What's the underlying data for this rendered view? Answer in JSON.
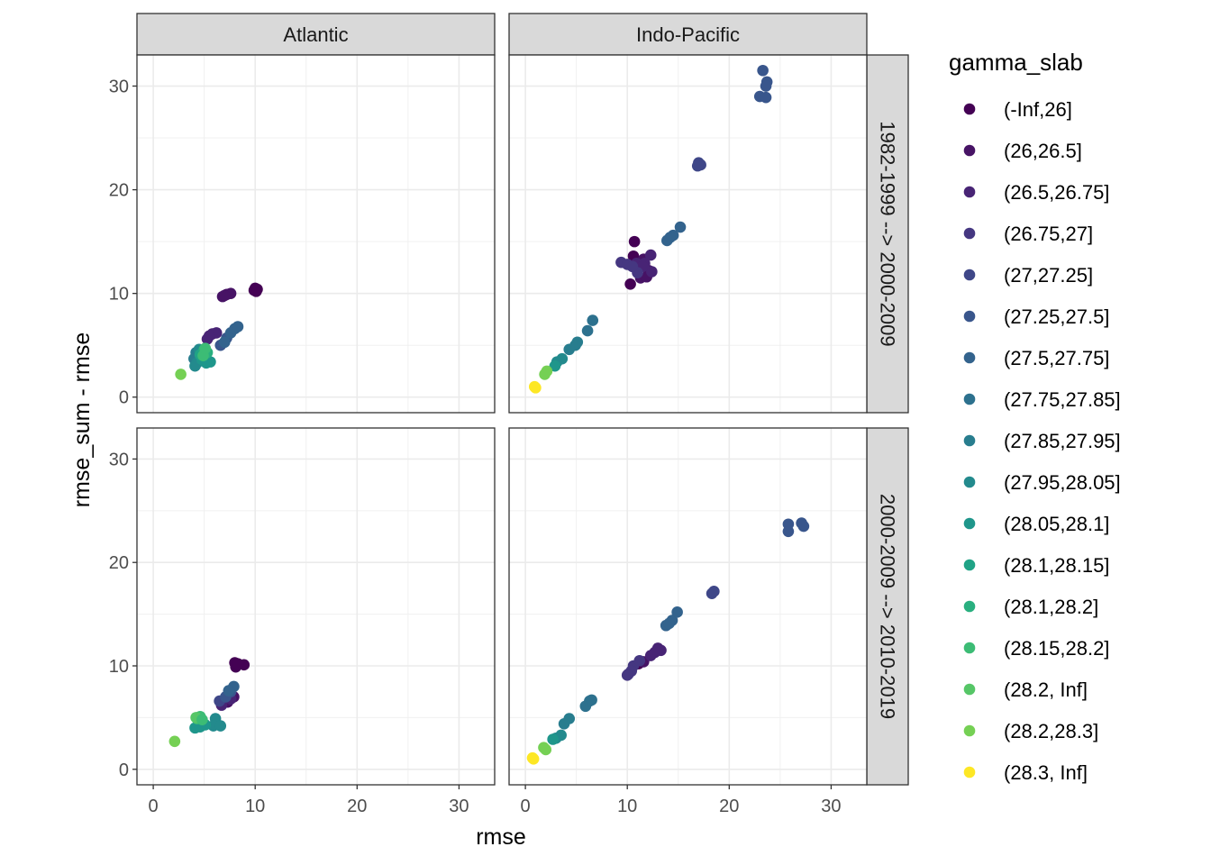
{
  "chart_data": {
    "type": "scatter",
    "title": "",
    "xlabel": "rmse",
    "ylabel": "rmse_sum - rmse",
    "xlim": [
      -1.6,
      33.5
    ],
    "ylim": [
      -1.5,
      33
    ],
    "xticks": [
      0,
      10,
      20,
      30
    ],
    "yticks": [
      0,
      10,
      20,
      30
    ],
    "grid": true,
    "facet_cols": [
      "Atlantic",
      "Indo-Pacific"
    ],
    "facet_rows": [
      "1982-1999 --> 2000-2009",
      "2000-2009 --> 2010-2019"
    ],
    "legend": {
      "title": "gamma_slab",
      "position": "right",
      "entries": [
        {
          "label": "(-Inf,26]",
          "color": "#440154"
        },
        {
          "label": "(26,26.5]",
          "color": "#471365"
        },
        {
          "label": "(26.5,26.75]",
          "color": "#482475"
        },
        {
          "label": "(26.75,27]",
          "color": "#453781"
        },
        {
          "label": "(27,27.25]",
          "color": "#3F4788"
        },
        {
          "label": "(27.25,27.5]",
          "color": "#39568C"
        },
        {
          "label": "(27.5,27.75]",
          "color": "#33638D"
        },
        {
          "label": "(27.75,27.85]",
          "color": "#2D718E"
        },
        {
          "label": "(27.85,27.95]",
          "color": "#287D8E"
        },
        {
          "label": "(27.95,28.05]",
          "color": "#238A8D"
        },
        {
          "label": "(28.05,28.1]",
          "color": "#1F968B"
        },
        {
          "label": "(28.1,28.15]",
          "color": "#20A386"
        },
        {
          "label": "(28.1,28.2]",
          "color": "#29AF7F"
        },
        {
          "label": "(28.15,28.2]",
          "color": "#3CBC75"
        },
        {
          "label": "(28.2, Inf]",
          "color": "#56C667"
        },
        {
          "label": "(28.2,28.3]",
          "color": "#75D054"
        },
        {
          "label": "(28.3, Inf]",
          "color": "#FDE725"
        }
      ]
    },
    "panels": [
      {
        "col": "Atlantic",
        "row": "1982-1999 --> 2000-2009",
        "points": [
          [
            10.0,
            10.5,
            0
          ],
          [
            10.1,
            10.2,
            0
          ],
          [
            9.9,
            10.3,
            0
          ],
          [
            10.2,
            10.4,
            0
          ],
          [
            6.8,
            9.7,
            1
          ],
          [
            7.2,
            9.9,
            1
          ],
          [
            7.6,
            10.0,
            1
          ],
          [
            7.0,
            9.8,
            1
          ],
          [
            5.8,
            6.1,
            2
          ],
          [
            6.2,
            6.2,
            2
          ],
          [
            5.3,
            5.6,
            2
          ],
          [
            5.5,
            5.9,
            2
          ],
          [
            6.6,
            5.0,
            5
          ],
          [
            7.2,
            5.7,
            5
          ],
          [
            7.6,
            6.2,
            6
          ],
          [
            8.0,
            6.6,
            6
          ],
          [
            8.3,
            6.8,
            6
          ],
          [
            7.0,
            5.3,
            6
          ],
          [
            4.0,
            3.7,
            8
          ],
          [
            4.2,
            4.3,
            8
          ],
          [
            4.5,
            4.6,
            9
          ],
          [
            4.3,
            3.3,
            9
          ],
          [
            4.1,
            3.0,
            9
          ],
          [
            5.2,
            3.3,
            10
          ],
          [
            5.6,
            3.4,
            10
          ],
          [
            4.8,
            3.6,
            10
          ],
          [
            4.6,
            4.1,
            11
          ],
          [
            5.1,
            4.4,
            11
          ],
          [
            5.0,
            4.6,
            12
          ],
          [
            5.3,
            4.3,
            12
          ],
          [
            4.9,
            4.0,
            13
          ],
          [
            5.1,
            4.7,
            13
          ],
          [
            2.7,
            2.2,
            15
          ]
        ]
      },
      {
        "col": "Indo-Pacific",
        "row": "1982-1999 --> 2000-2009",
        "points": [
          [
            23.3,
            31.5,
            5
          ],
          [
            23.7,
            30.4,
            5
          ],
          [
            23.6,
            30.0,
            5
          ],
          [
            23.0,
            29.0,
            5
          ],
          [
            23.6,
            28.9,
            5
          ],
          [
            17.0,
            22.6,
            4
          ],
          [
            17.2,
            22.4,
            4
          ],
          [
            16.9,
            22.3,
            4
          ],
          [
            10.7,
            15.0,
            0
          ],
          [
            10.6,
            13.6,
            0
          ],
          [
            10.3,
            10.9,
            0
          ],
          [
            11.6,
            13.3,
            1
          ],
          [
            12.1,
            12.2,
            1
          ],
          [
            11.3,
            11.5,
            1
          ],
          [
            11.9,
            11.6,
            1
          ],
          [
            10.9,
            12.9,
            2
          ],
          [
            11.7,
            12.9,
            2
          ],
          [
            12.4,
            12.1,
            2
          ],
          [
            11.5,
            12.6,
            2
          ],
          [
            12.3,
            13.7,
            2
          ],
          [
            9.4,
            13.0,
            3
          ],
          [
            10.0,
            12.8,
            3
          ],
          [
            11.0,
            12.0,
            3
          ],
          [
            10.5,
            12.6,
            3
          ],
          [
            13.9,
            15.1,
            6
          ],
          [
            14.5,
            15.6,
            6
          ],
          [
            15.2,
            16.4,
            6
          ],
          [
            14.2,
            15.4,
            6
          ],
          [
            6.1,
            6.4,
            7
          ],
          [
            6.6,
            7.4,
            7
          ],
          [
            4.3,
            4.6,
            8
          ],
          [
            4.9,
            5.0,
            8
          ],
          [
            5.1,
            5.3,
            8
          ],
          [
            3.1,
            3.4,
            9
          ],
          [
            3.6,
            3.7,
            9
          ],
          [
            2.9,
            3.0,
            10
          ],
          [
            2.1,
            2.5,
            15
          ],
          [
            1.9,
            2.2,
            15
          ],
          [
            0.9,
            1.0,
            16
          ],
          [
            1.0,
            0.9,
            16
          ]
        ]
      },
      {
        "col": "Atlantic",
        "row": "2000-2009 --> 2010-2019",
        "points": [
          [
            8.0,
            10.3,
            0
          ],
          [
            8.9,
            10.1,
            0
          ],
          [
            8.1,
            9.9,
            0
          ],
          [
            8.3,
            10.2,
            0
          ],
          [
            7.9,
            7.0,
            1
          ],
          [
            7.3,
            6.5,
            1
          ],
          [
            6.7,
            6.2,
            2
          ],
          [
            7.6,
            6.8,
            2
          ],
          [
            6.5,
            6.6,
            4
          ],
          [
            7.1,
            7.0,
            5
          ],
          [
            7.6,
            7.5,
            5
          ],
          [
            7.9,
            8.0,
            6
          ],
          [
            7.4,
            7.6,
            6
          ],
          [
            6.1,
            4.9,
            9
          ],
          [
            5.9,
            4.2,
            9
          ],
          [
            6.6,
            4.2,
            9
          ],
          [
            4.1,
            4.0,
            10
          ],
          [
            4.6,
            4.1,
            10
          ],
          [
            5.1,
            4.3,
            10
          ],
          [
            4.3,
            4.9,
            13
          ],
          [
            4.6,
            5.1,
            13
          ],
          [
            4.2,
            5.0,
            14
          ],
          [
            4.8,
            4.8,
            13
          ],
          [
            2.1,
            2.7,
            15
          ]
        ]
      },
      {
        "col": "Indo-Pacific",
        "row": "2000-2009 --> 2010-2019",
        "points": [
          [
            25.8,
            23.7,
            5
          ],
          [
            25.8,
            23.0,
            5
          ],
          [
            27.1,
            23.8,
            5
          ],
          [
            27.3,
            23.5,
            5
          ],
          [
            18.3,
            17.0,
            4
          ],
          [
            18.5,
            17.2,
            4
          ],
          [
            11.1,
            10.2,
            0
          ],
          [
            11.6,
            10.4,
            1
          ],
          [
            12.3,
            11.0,
            2
          ],
          [
            13.0,
            11.7,
            2
          ],
          [
            13.3,
            11.5,
            2
          ],
          [
            12.7,
            11.3,
            2
          ],
          [
            10.6,
            10.0,
            3
          ],
          [
            11.2,
            10.5,
            3
          ],
          [
            10.1,
            9.2,
            3
          ],
          [
            10.4,
            9.5,
            3
          ],
          [
            10.0,
            9.1,
            3
          ],
          [
            13.8,
            13.9,
            6
          ],
          [
            14.4,
            14.4,
            6
          ],
          [
            14.9,
            15.2,
            6
          ],
          [
            14.1,
            14.1,
            6
          ],
          [
            5.9,
            6.1,
            7
          ],
          [
            6.3,
            6.6,
            7
          ],
          [
            6.5,
            6.7,
            7
          ],
          [
            3.8,
            4.4,
            8
          ],
          [
            4.3,
            4.9,
            8
          ],
          [
            3.0,
            3.0,
            9
          ],
          [
            3.5,
            3.3,
            9
          ],
          [
            2.7,
            2.9,
            10
          ],
          [
            1.8,
            2.1,
            15
          ],
          [
            2.0,
            1.9,
            15
          ],
          [
            0.8,
            1.0,
            16
          ],
          [
            0.7,
            1.1,
            16
          ]
        ]
      }
    ]
  }
}
